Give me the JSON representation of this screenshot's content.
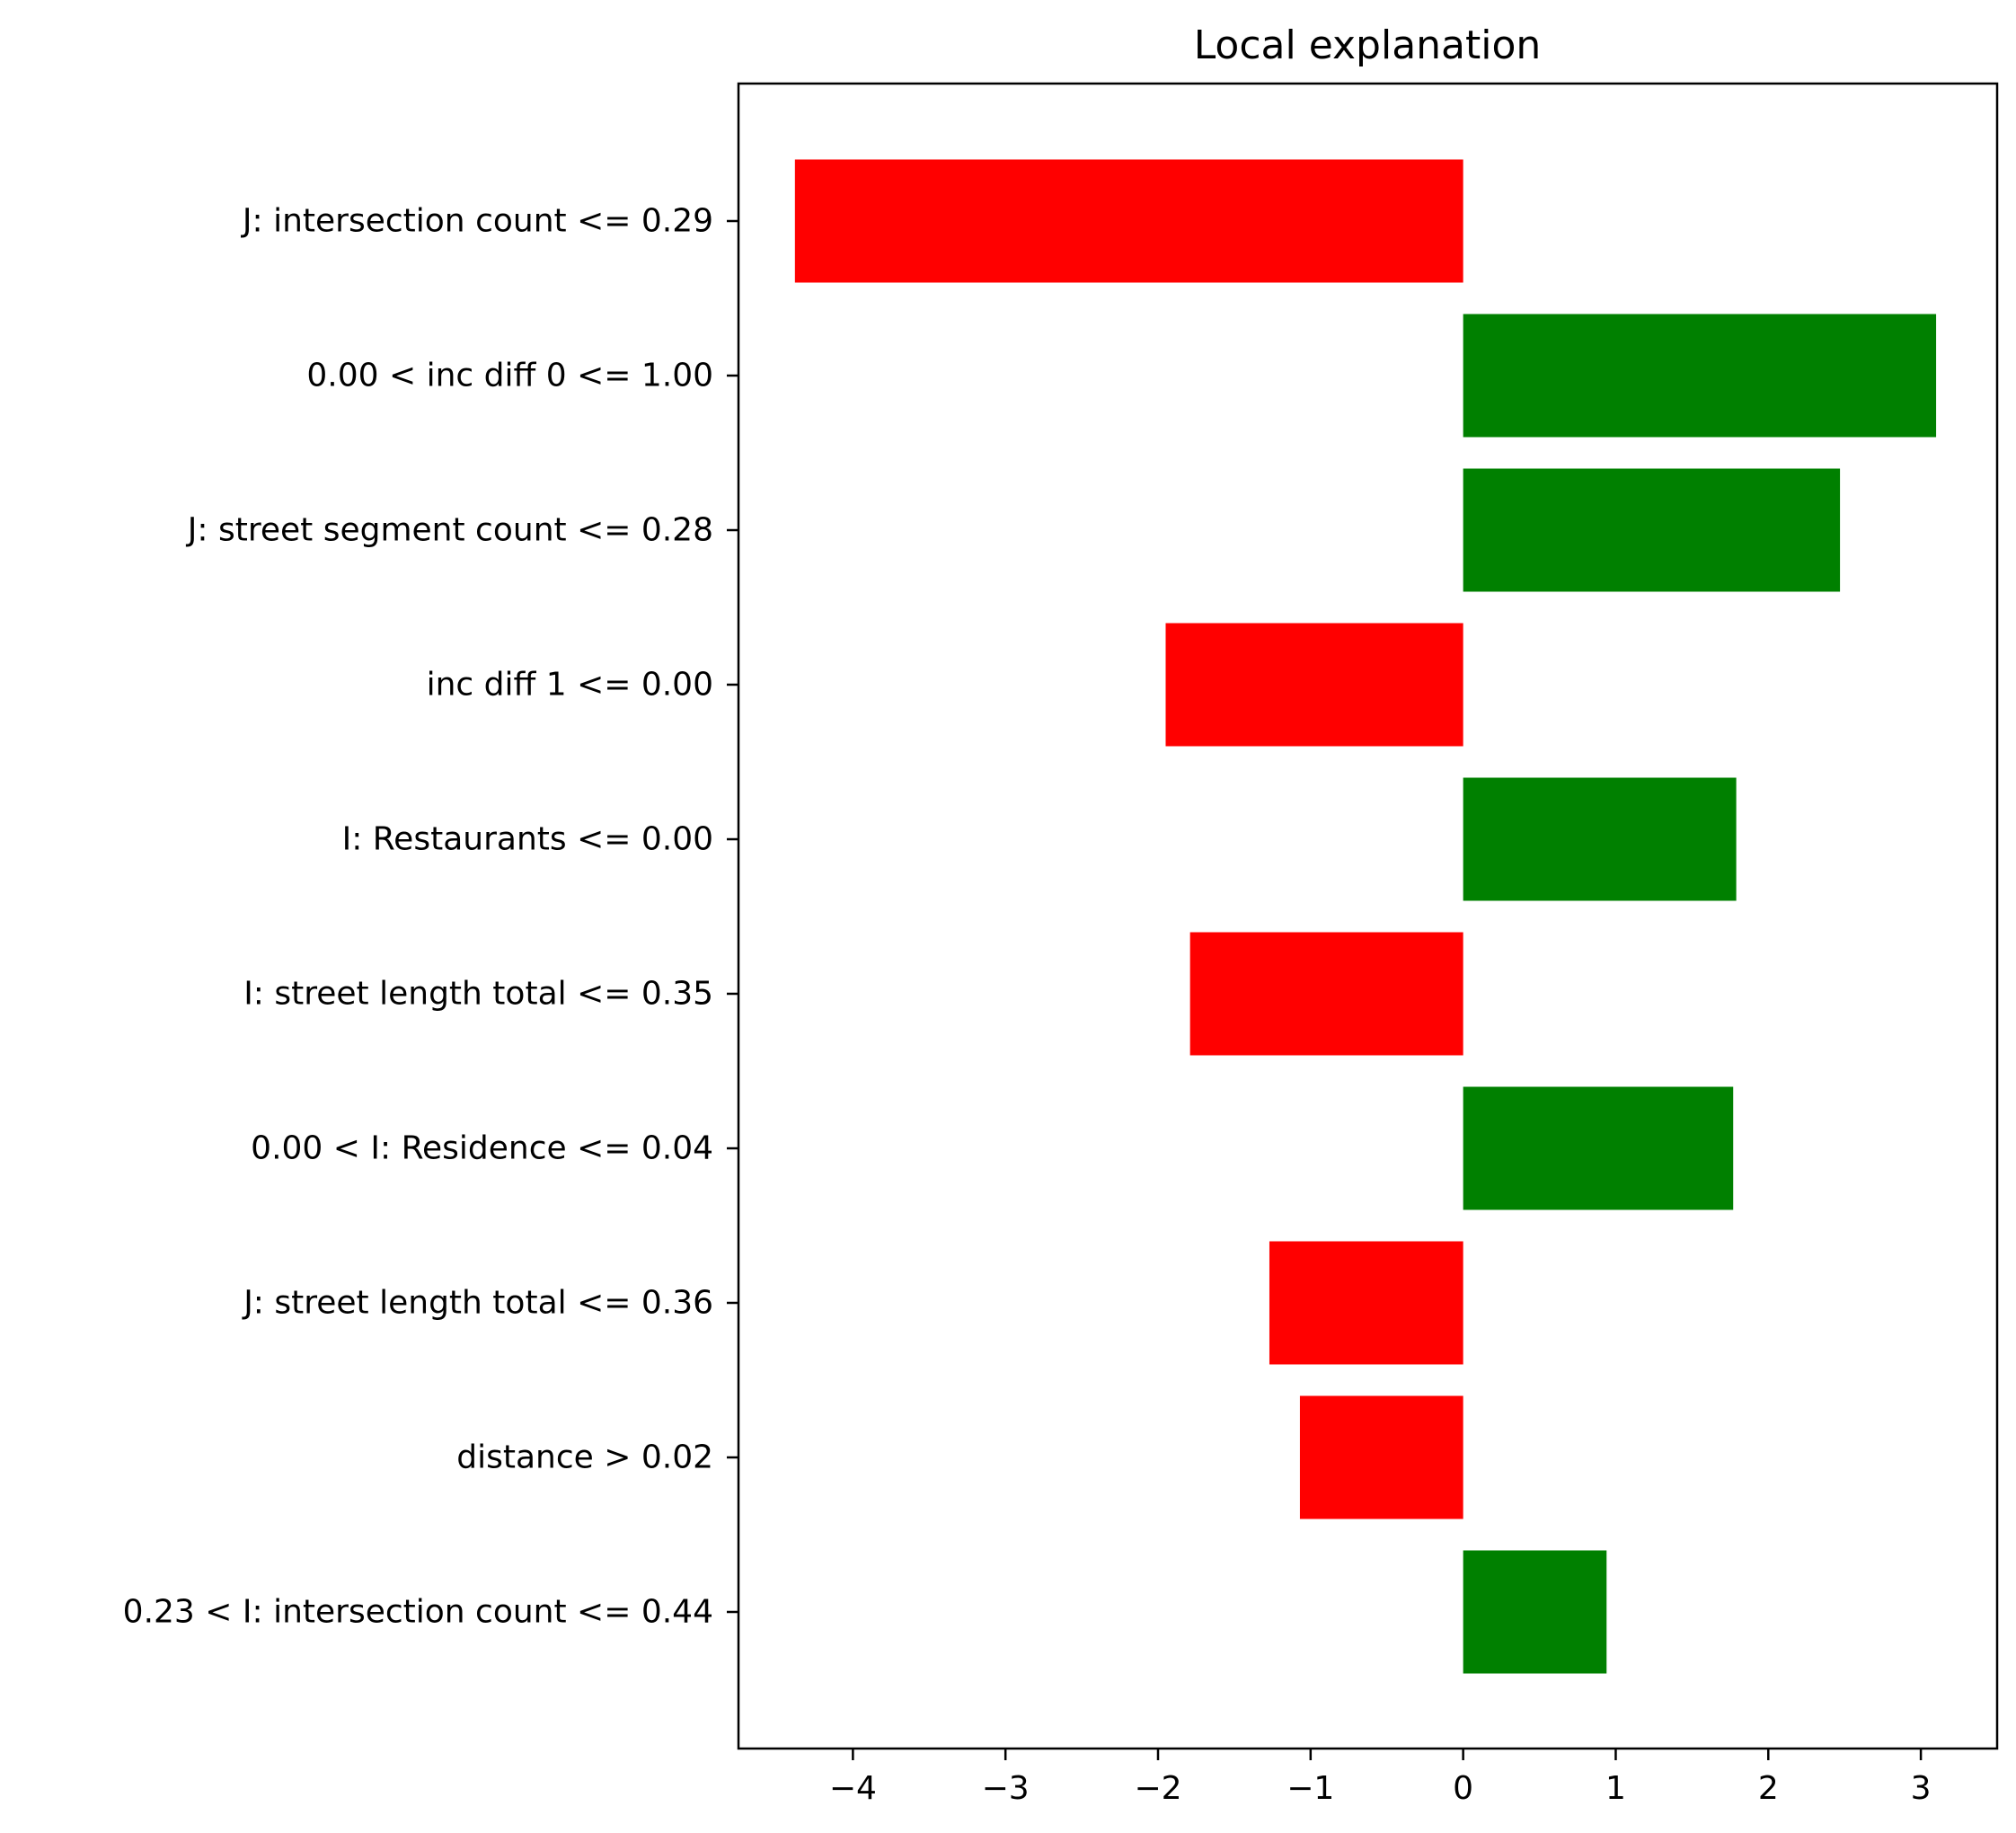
{
  "chart_data": {
    "type": "bar",
    "orientation": "horizontal",
    "title": "Local explanation",
    "xlabel": "",
    "ylabel": "",
    "xlim": [
      -4.75,
      3.5
    ],
    "xticks": [
      -4,
      -3,
      -2,
      -1,
      0,
      1,
      2,
      3
    ],
    "xtick_labels": [
      "−4",
      "−3",
      "−2",
      "−1",
      "0",
      "1",
      "2",
      "3"
    ],
    "grid": false,
    "legend": "none",
    "positive_color": "#008000",
    "negative_color": "#ff0000",
    "categories": [
      "J: intersection count <= 0.29",
      "0.00 < inc diff 0 <= 1.00",
      "J: street segment count <= 0.28",
      "inc diff 1 <= 0.00",
      "I: Restaurants <= 0.00",
      "I: street length total <= 0.35",
      "0.00 < I: Residence <= 0.04",
      "J: street length total <= 0.36",
      "distance > 0.02",
      "0.23 < I: intersection count <= 0.44"
    ],
    "values": [
      -4.38,
      3.1,
      2.47,
      -1.95,
      1.79,
      -1.79,
      1.77,
      -1.27,
      -1.07,
      0.94
    ]
  }
}
